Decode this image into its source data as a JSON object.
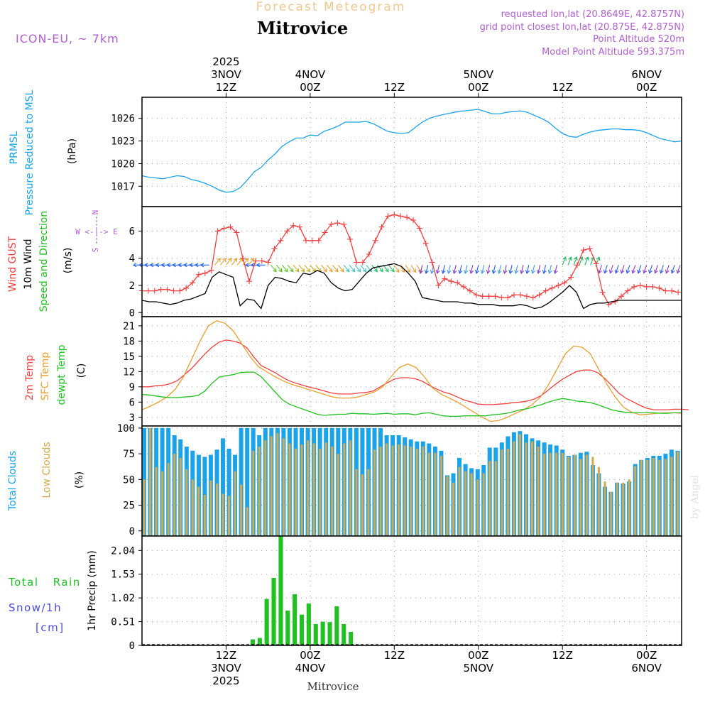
{
  "header": {
    "brand": "Forecast Meteogram",
    "title": "Mitrovice",
    "model": "ICON-EU, ~ 7km",
    "requested": "requested lon,lat (20.8649E, 42.8757N)",
    "grid": "grid point closest lon,lat (20.875E, 42.875N)",
    "point_alt": "Point Altitude 520m",
    "model_alt": "Model Point Altitude 593.375m",
    "watermark": "by Angel",
    "footer": "Mitrovice"
  },
  "time_axis": {
    "start_hour": 0,
    "end_hour": 77,
    "top_labels": [
      {
        "hour": 12,
        "lines": [
          "2025",
          "3NOV",
          "12Z"
        ]
      },
      {
        "hour": 24,
        "lines": [
          "4NOV",
          "00Z"
        ]
      },
      {
        "hour": 36,
        "lines": [
          "12Z"
        ]
      },
      {
        "hour": 48,
        "lines": [
          "5NOV",
          "00Z"
        ]
      },
      {
        "hour": 60,
        "lines": [
          "12Z"
        ]
      },
      {
        "hour": 72,
        "lines": [
          "6NOV",
          "00Z"
        ]
      }
    ],
    "bottom_labels": [
      {
        "hour": 12,
        "lines": [
          "12Z",
          "3NOV",
          "2025"
        ]
      },
      {
        "hour": 24,
        "lines": [
          "00Z",
          "4NOV"
        ]
      },
      {
        "hour": 36,
        "lines": [
          "12Z"
        ]
      },
      {
        "hour": 48,
        "lines": [
          "00Z",
          "5NOV"
        ]
      },
      {
        "hour": 60,
        "lines": [
          "12Z"
        ]
      },
      {
        "hour": 72,
        "lines": [
          "00Z",
          "6NOV"
        ]
      }
    ]
  },
  "colors": {
    "pressure": "#1aa3e8",
    "gust": "#f04040",
    "wind": "#000000",
    "t2m": "#f04040",
    "sfc": "#e8a030",
    "dewpt": "#20c020",
    "total_clouds": "#1aa3e8",
    "low_clouds": "#d4aa50",
    "rain": "#22c022",
    "purple": "#b060d0",
    "brand": "#f0c890",
    "snow": "#4a4ae0"
  },
  "chart_data": [
    {
      "type": "line",
      "panel": "pressure",
      "labels": {
        "left1": "PRMSL",
        "left2": "Pressure Reduced to MSL",
        "unit": "(hPa)"
      },
      "ylim": [
        1014.3,
        1028.8
      ],
      "ticks": [
        1017,
        1020,
        1023,
        1026
      ],
      "series": [
        {
          "name": "PRMSL",
          "values": [
            1018.4,
            1018.2,
            1018.1,
            1018.0,
            1018.2,
            1018.4,
            1018.3,
            1017.9,
            1017.7,
            1017.4,
            1017.0,
            1016.5,
            1016.2,
            1016.3,
            1016.8,
            1017.8,
            1018.9,
            1019.5,
            1020.5,
            1021.3,
            1022.3,
            1022.9,
            1023.4,
            1023.4,
            1023.8,
            1023.7,
            1024.3,
            1024.6,
            1025.0,
            1025.5,
            1025.5,
            1025.5,
            1025.6,
            1025.3,
            1024.8,
            1024.3,
            1024.1,
            1024.0,
            1024.1,
            1024.8,
            1025.5,
            1026.0,
            1026.3,
            1026.5,
            1026.7,
            1026.9,
            1027.0,
            1027.1,
            1027.2,
            1026.9,
            1026.6,
            1026.6,
            1026.8,
            1026.9,
            1027.0,
            1026.8,
            1026.4,
            1026.0,
            1025.5,
            1024.7,
            1024.0,
            1023.6,
            1023.5,
            1023.9,
            1024.2,
            1024.4,
            1024.5,
            1024.6,
            1024.6,
            1024.5,
            1024.5,
            1024.4,
            1024.1,
            1023.7,
            1023.3,
            1023.1,
            1022.9,
            1023.0
          ]
        }
      ]
    },
    {
      "type": "line",
      "panel": "wind",
      "labels": {
        "left1": "Wind GUST",
        "left2": "10m Wind",
        "left3": "Speed and Direction",
        "unit": "(m/s)",
        "compass_n": "N",
        "compass_row": "W <-|-> E",
        "compass_s": "S"
      },
      "ylim": [
        -0.3,
        7.8
      ],
      "ticks": [
        0,
        2,
        4,
        6
      ],
      "series": [
        {
          "name": "Wind GUST",
          "values": [
            1.6,
            1.6,
            1.6,
            1.7,
            1.7,
            1.6,
            1.6,
            1.8,
            2.2,
            2.8,
            2.9,
            3.1,
            6.0,
            6.2,
            6.3,
            5.9,
            4.0,
            2.3,
            3.8,
            3.8,
            3.7,
            4.7,
            5.3,
            6.0,
            6.4,
            6.3,
            5.3,
            5.3,
            5.3,
            5.9,
            6.5,
            6.6,
            6.5,
            5.4,
            3.7,
            3.7,
            4.3,
            5.3,
            6.3,
            7.1,
            7.2,
            7.1,
            7.0,
            6.8,
            6.2,
            5.1,
            3.7,
            2.0,
            2.5,
            2.3,
            2.2,
            1.9,
            1.6,
            1.3,
            1.2,
            1.2,
            1.2,
            1.1,
            1.1,
            1.3,
            1.3,
            1.2,
            1.1,
            1.3,
            1.6,
            1.8,
            2.0,
            2.2,
            2.6,
            3.5,
            4.6,
            4.7,
            3.6,
            1.5,
            0.6,
            0.8,
            1.2,
            1.6,
            1.9,
            2.0,
            1.9,
            1.9,
            1.8,
            1.6,
            1.6,
            1.5
          ]
        },
        {
          "name": "10m Wind",
          "values": [
            0.9,
            0.8,
            0.8,
            0.7,
            0.6,
            0.7,
            0.9,
            1.0,
            1.2,
            1.4,
            2.6,
            3.0,
            2.8,
            2.6,
            0.5,
            1.0,
            0.9,
            0.3,
            2.0,
            2.6,
            2.5,
            2.3,
            2.2,
            2.9,
            2.8,
            3.1,
            2.9,
            2.2,
            1.8,
            1.6,
            1.7,
            2.3,
            2.9,
            3.3,
            3.4,
            3.5,
            3.6,
            3.4,
            2.9,
            2.3,
            1.1,
            1.0,
            0.9,
            0.8,
            0.8,
            0.8,
            0.7,
            0.7,
            0.6,
            0.6,
            0.6,
            0.5,
            0.5,
            0.5,
            0.6,
            0.5,
            0.3,
            0.4,
            0.7,
            1.1,
            1.5,
            2.0,
            1.5,
            0.3,
            0.6,
            0.7,
            0.7,
            0.8,
            0.9,
            0.9,
            0.9,
            0.9,
            0.9,
            0.9,
            0.9,
            0.9,
            0.9,
            0.9
          ]
        }
      ],
      "wind_arrows_start_hour": 0,
      "wind_arrows_step_hours": 0.8
    },
    {
      "type": "line",
      "panel": "temperature",
      "labels": {
        "left1": "2m Temp",
        "left2": "SFC Temp",
        "left3": "dewpt Temp",
        "unit": "(C)"
      },
      "ylim": [
        1.3,
        22.8
      ],
      "ticks": [
        3,
        6,
        9,
        12,
        15,
        18,
        21
      ],
      "series": [
        {
          "name": "2m Temp",
          "values": [
            9.0,
            9.0,
            9.2,
            9.3,
            9.6,
            10.2,
            11.3,
            12.5,
            14.0,
            15.5,
            16.8,
            17.8,
            18.2,
            18.0,
            17.6,
            16.6,
            14.8,
            13.2,
            12.5,
            11.8,
            10.9,
            10.2,
            9.7,
            9.3,
            8.9,
            8.6,
            8.2,
            7.8,
            7.6,
            7.6,
            7.6,
            7.8,
            7.9,
            8.2,
            9.0,
            9.8,
            10.5,
            10.8,
            10.8,
            10.6,
            10.1,
            9.3,
            8.6,
            8.0,
            7.6,
            7.0,
            6.4,
            6.0,
            5.6,
            5.5,
            5.5,
            5.6,
            5.7,
            5.9,
            6.0,
            6.2,
            6.6,
            7.3,
            8.4,
            9.5,
            10.5,
            11.3,
            12.0,
            12.3,
            12.3,
            11.8,
            10.7,
            9.3,
            7.8,
            6.8,
            6.1,
            5.4,
            4.8,
            4.5,
            4.5,
            4.5,
            4.6,
            4.6,
            4.5
          ]
        },
        {
          "name": "SFC Temp",
          "values": [
            4.5,
            5.2,
            6.0,
            7.0,
            8.5,
            11.0,
            14.5,
            18.0,
            21.0,
            22.0,
            21.5,
            20.0,
            17.5,
            15.0,
            13.0,
            12.0,
            11.0,
            10.2,
            9.5,
            9.0,
            8.5,
            8.0,
            7.5,
            7.0,
            6.8,
            6.8,
            7.0,
            7.5,
            8.0,
            9.0,
            11.0,
            12.8,
            13.5,
            12.8,
            11.0,
            8.8,
            7.6,
            6.8,
            6.0,
            5.0,
            4.0,
            3.0,
            2.2,
            2.4,
            3.0,
            3.8,
            4.5,
            5.5,
            7.0,
            9.5,
            12.5,
            15.5,
            17.0,
            16.8,
            15.5,
            12.5,
            9.5,
            7.0,
            5.0,
            4.0,
            3.5,
            3.6,
            3.8,
            3.9,
            3.9,
            3.8
          ]
        },
        {
          "name": "dewpt Temp",
          "values": [
            7.5,
            7.4,
            7.2,
            7.0,
            6.9,
            6.9,
            7.0,
            7.1,
            7.3,
            8.2,
            9.7,
            10.9,
            11.2,
            11.4,
            11.8,
            11.9,
            11.9,
            11.0,
            9.5,
            8.0,
            6.5,
            5.6,
            5.1,
            4.6,
            4.1,
            3.6,
            3.4,
            3.5,
            3.6,
            3.6,
            3.8,
            3.7,
            3.7,
            3.6,
            3.7,
            3.8,
            3.6,
            3.7,
            3.7,
            3.5,
            3.8,
            3.9,
            3.6,
            3.3,
            3.2,
            3.2,
            3.3,
            3.3,
            3.3,
            3.3,
            3.5,
            3.6,
            3.8,
            4.1,
            4.5,
            4.7,
            5.1,
            5.5,
            6.0,
            6.4,
            6.7,
            6.5,
            6.2,
            6.1,
            5.9,
            5.5,
            5.0,
            4.5,
            4.2,
            4.0,
            3.9,
            3.9,
            3.9,
            3.9,
            3.8,
            3.8,
            3.9,
            3.9
          ]
        }
      ]
    },
    {
      "type": "bar",
      "panel": "clouds",
      "labels": {
        "left1": "Total Clouds",
        "left2": "Low Clouds",
        "unit": "(%)"
      },
      "ylim": [
        -5,
        102
      ],
      "ticks": [
        0,
        25,
        50,
        75,
        100
      ],
      "series": [
        {
          "name": "Total Clouds",
          "values": [
            100,
            100,
            100,
            100,
            100,
            93,
            89,
            82,
            78,
            74,
            72,
            74,
            79,
            90,
            80,
            74,
            100,
            100,
            100,
            93,
            100,
            100,
            100,
            100,
            100,
            100,
            100,
            100,
            100,
            100,
            100,
            100,
            100,
            100,
            100,
            100,
            100,
            100,
            100,
            100,
            93,
            93,
            93,
            91,
            89,
            87,
            87,
            85,
            82,
            78,
            54,
            56,
            71,
            65,
            61,
            60,
            64,
            81,
            81,
            86,
            92,
            96,
            97,
            94,
            90,
            88,
            86,
            84,
            83,
            79,
            73,
            74,
            76,
            77,
            64,
            56,
            43,
            38,
            47,
            46,
            48,
            65,
            69,
            71,
            73,
            73,
            75,
            79,
            78
          ]
        },
        {
          "name": "Low Clouds",
          "values": [
            50,
            100,
            62,
            58,
            66,
            75,
            71,
            60,
            50,
            43,
            35,
            49,
            46,
            36,
            34,
            58,
            45,
            23,
            78,
            82,
            88,
            92,
            95,
            90,
            85,
            80,
            84,
            88,
            85,
            80,
            86,
            82,
            75,
            85,
            88,
            60,
            55,
            60,
            79,
            82,
            85,
            83,
            84,
            83,
            82,
            80,
            82,
            76,
            76,
            73,
            53,
            47,
            62,
            58,
            56,
            50,
            56,
            68,
            68,
            79,
            80,
            87,
            94,
            86,
            87,
            82,
            75,
            76,
            76,
            76,
            72,
            74,
            70,
            74,
            72,
            62,
            48,
            38,
            47,
            47,
            50,
            63,
            69,
            69,
            71,
            69,
            70,
            72,
            77
          ]
        }
      ]
    },
    {
      "type": "bar",
      "panel": "precipitation",
      "labels": {
        "left1": "Total Rain",
        "left2": "Snow/1h",
        "left3": "[cm]",
        "unit": "1hr Precip (mm)"
      },
      "ylim": [
        0,
        2.35
      ],
      "ticks": [
        0,
        0.51,
        1.02,
        1.53,
        2.04
      ],
      "tick_labels": [
        "0",
        "0.51",
        "1.02",
        "1.53",
        "2.04"
      ],
      "x_start_hour": 11.8,
      "values": [
        0.01,
        0.0,
        0.0,
        0.0,
        0.13,
        0.16,
        1.0,
        1.45,
        2.35,
        0.75,
        1.1,
        0.66,
        0.9,
        0.46,
        0.51,
        0.5,
        0.84,
        0.46,
        0.29
      ]
    }
  ]
}
